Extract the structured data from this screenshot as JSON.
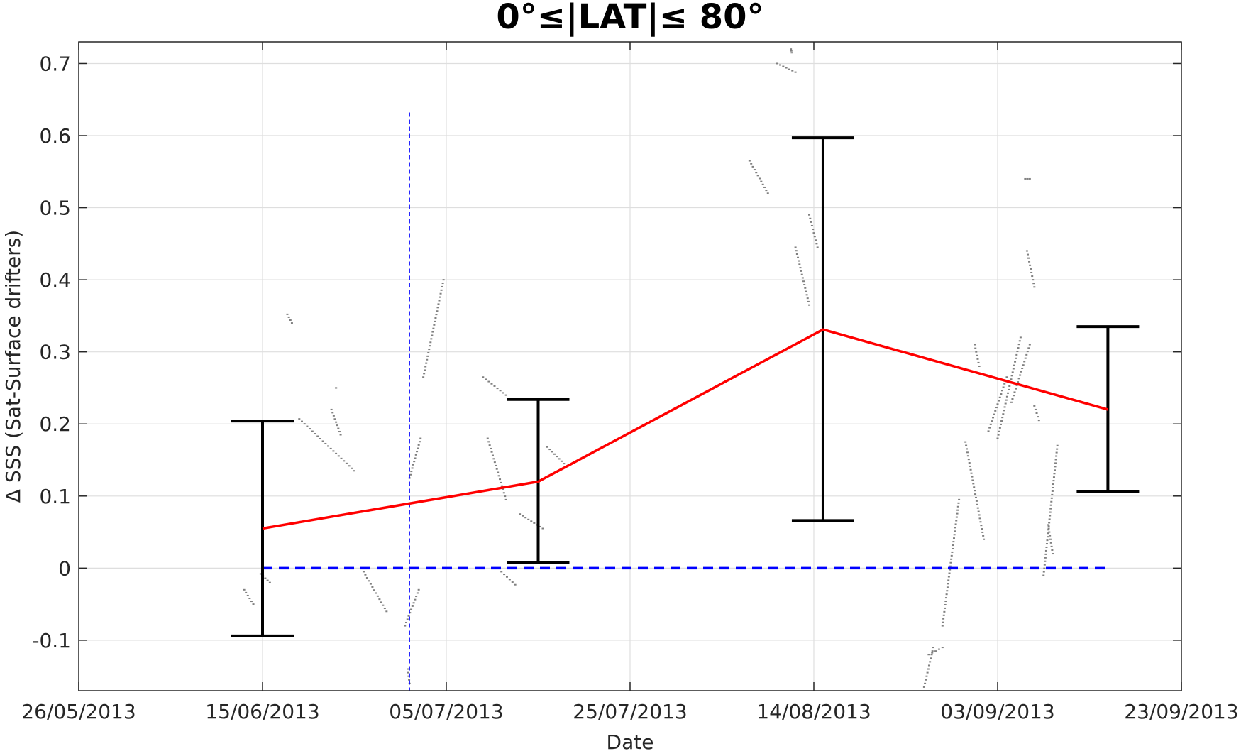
{
  "chart_data": {
    "type": "line",
    "title": "0°≤|LAT|≤ 80°",
    "xlabel": "Date",
    "ylabel": "Δ SSS (Sat-Surface drifters)",
    "x_axis": {
      "type": "date",
      "range": [
        "2013-05-26",
        "2013-09-23"
      ],
      "ticks": [
        {
          "date": "2013-05-26",
          "label": "26/05/2013"
        },
        {
          "date": "2013-06-15",
          "label": "15/06/2013"
        },
        {
          "date": "2013-07-05",
          "label": "05/07/2013"
        },
        {
          "date": "2013-07-25",
          "label": "25/07/2013"
        },
        {
          "date": "2013-08-14",
          "label": "14/08/2013"
        },
        {
          "date": "2013-09-03",
          "label": "03/09/2013"
        },
        {
          "date": "2013-09-23",
          "label": "23/09/2013"
        }
      ]
    },
    "y_axis": {
      "range": [
        -0.17,
        0.73
      ],
      "ticks": [
        {
          "value": -0.1,
          "label": "-0.1"
        },
        {
          "value": 0,
          "label": "0"
        },
        {
          "value": 0.1,
          "label": "0.1"
        },
        {
          "value": 0.2,
          "label": "0.2"
        },
        {
          "value": 0.3,
          "label": "0.3"
        },
        {
          "value": 0.4,
          "label": "0.4"
        },
        {
          "value": 0.5,
          "label": "0.5"
        },
        {
          "value": 0.6,
          "label": "0.6"
        },
        {
          "value": 0.7,
          "label": "0.7"
        }
      ]
    },
    "grid": true,
    "series": [
      {
        "kind": "mean_with_errorbars",
        "color": "#ff0000",
        "errorbar_color": "#000000",
        "points": [
          {
            "x": "2013-06-15",
            "y": 0.055,
            "lower": -0.094,
            "upper": 0.204
          },
          {
            "x": "2013-07-15",
            "y": 0.12,
            "lower": 0.008,
            "upper": 0.234
          },
          {
            "x": "2013-08-15",
            "y": 0.331,
            "lower": 0.066,
            "upper": 0.597
          },
          {
            "x": "2013-09-15",
            "y": 0.22,
            "lower": 0.106,
            "upper": 0.335
          }
        ]
      },
      {
        "kind": "zero_reference",
        "color": "#0000ff",
        "style": "dashed",
        "x": [
          "2013-06-15",
          "2013-09-15"
        ],
        "y": [
          0,
          0
        ]
      },
      {
        "kind": "vertical_marker",
        "color": "#0000ff",
        "style": "dashed",
        "x": "2013-07-01",
        "y_top": 0.632
      },
      {
        "kind": "scatter_segments",
        "color": "#808080",
        "segments": [
          {
            "x": [
              "2013-06-13",
              "2013-06-14"
            ],
            "y": [
              -0.03,
              -0.05
            ]
          },
          {
            "x": [
              "2013-06-14.8",
              "2013-06-15.8"
            ],
            "y": [
              -0.008,
              -0.02
            ]
          },
          {
            "x": [
              "2013-06-17.7",
              "2013-06-18.2"
            ],
            "y": [
              0.352,
              0.34
            ]
          },
          {
            "x": [
              "2013-06-19",
              "2013-06-25"
            ],
            "y": [
              0.207,
              0.135
            ]
          },
          {
            "x": [
              "2013-06-22.5",
              "2013-06-23.5"
            ],
            "y": [
              0.22,
              0.185
            ]
          },
          {
            "x": [
              "2013-06-23",
              "2013-06-23"
            ],
            "y": [
              0.25,
              0.25
            ]
          },
          {
            "x": [
              "2013-06-26",
              "2013-06-28.5"
            ],
            "y": [
              -0.005,
              -0.06
            ]
          },
          {
            "x": [
              "2013-06-30.5",
              "2013-07-02"
            ],
            "y": [
              -0.08,
              -0.03
            ]
          },
          {
            "x": [
              "2013-06-30.8",
              "2013-07-01"
            ],
            "y": [
              -0.14,
              -0.16
            ]
          },
          {
            "x": [
              "2013-07-01",
              "2013-07-02.2"
            ],
            "y": [
              0.125,
              0.18
            ]
          },
          {
            "x": [
              "2013-07-02.5",
              "2013-07-04.7"
            ],
            "y": [
              0.265,
              0.4
            ]
          },
          {
            "x": [
              "2013-07-09",
              "2013-07-11.5"
            ],
            "y": [
              0.265,
              0.24
            ]
          },
          {
            "x": [
              "2013-07-09.5",
              "2013-07-11.5"
            ],
            "y": [
              0.18,
              0.095
            ]
          },
          {
            "x": [
              "2013-07-11",
              "2013-07-12.5"
            ],
            "y": [
              -0.005,
              -0.023
            ]
          },
          {
            "x": [
              "2013-07-13",
              "2013-07-15.5"
            ],
            "y": [
              0.075,
              0.055
            ]
          },
          {
            "x": [
              "2013-07-16",
              "2013-07-17.8"
            ],
            "y": [
              0.168,
              0.145
            ]
          },
          {
            "x": [
              "2013-08-07",
              "2013-08-09"
            ],
            "y": [
              0.565,
              0.52
            ]
          },
          {
            "x": [
              "2013-08-10",
              "2013-08-12"
            ],
            "y": [
              0.7,
              0.688
            ]
          },
          {
            "x": [
              "2013-08-11.5",
              "2013-08-11.6"
            ],
            "y": [
              0.72,
              0.715
            ]
          },
          {
            "x": [
              "2013-08-12",
              "2013-08-13.5"
            ],
            "y": [
              0.445,
              0.365
            ]
          },
          {
            "x": [
              "2013-08-13.5",
              "2013-08-14.4"
            ],
            "y": [
              0.49,
              0.445
            ]
          },
          {
            "x": [
              "2013-08-26",
              "2013-08-27"
            ],
            "y": [
              -0.165,
              -0.11
            ]
          },
          {
            "x": [
              "2013-08-26.5",
              "2013-08-28"
            ],
            "y": [
              -0.12,
              -0.11
            ]
          },
          {
            "x": [
              "2013-08-28",
              "2013-08-29.8"
            ],
            "y": [
              -0.08,
              0.095
            ]
          },
          {
            "x": [
              "2013-08-30.5",
              "2013-09-01.5"
            ],
            "y": [
              0.175,
              0.04
            ]
          },
          {
            "x": [
              "2013-08-31.5",
              "2013-09-01"
            ],
            "y": [
              0.31,
              0.28
            ]
          },
          {
            "x": [
              "2013-09-02",
              "2013-09-04"
            ],
            "y": [
              0.19,
              0.265
            ]
          },
          {
            "x": [
              "2013-09-03",
              "2013-09-05.5"
            ],
            "y": [
              0.18,
              0.32
            ]
          },
          {
            "x": [
              "2013-09-04.5",
              "2013-09-06.5"
            ],
            "y": [
              0.23,
              0.31
            ]
          },
          {
            "x": [
              "2013-09-06",
              "2013-09-06.5"
            ],
            "y": [
              0.54,
              0.54
            ]
          },
          {
            "x": [
              "2013-09-06.2",
              "2013-09-07"
            ],
            "y": [
              0.44,
              0.39
            ]
          },
          {
            "x": [
              "2013-09-07",
              "2013-09-07.5"
            ],
            "y": [
              0.225,
              0.205
            ]
          },
          {
            "x": [
              "2013-09-08",
              "2013-09-09.5"
            ],
            "y": [
              -0.01,
              0.17
            ]
          },
          {
            "x": [
              "2013-09-08.5",
              "2013-09-09"
            ],
            "y": [
              0.06,
              0.02
            ]
          }
        ]
      }
    ]
  }
}
